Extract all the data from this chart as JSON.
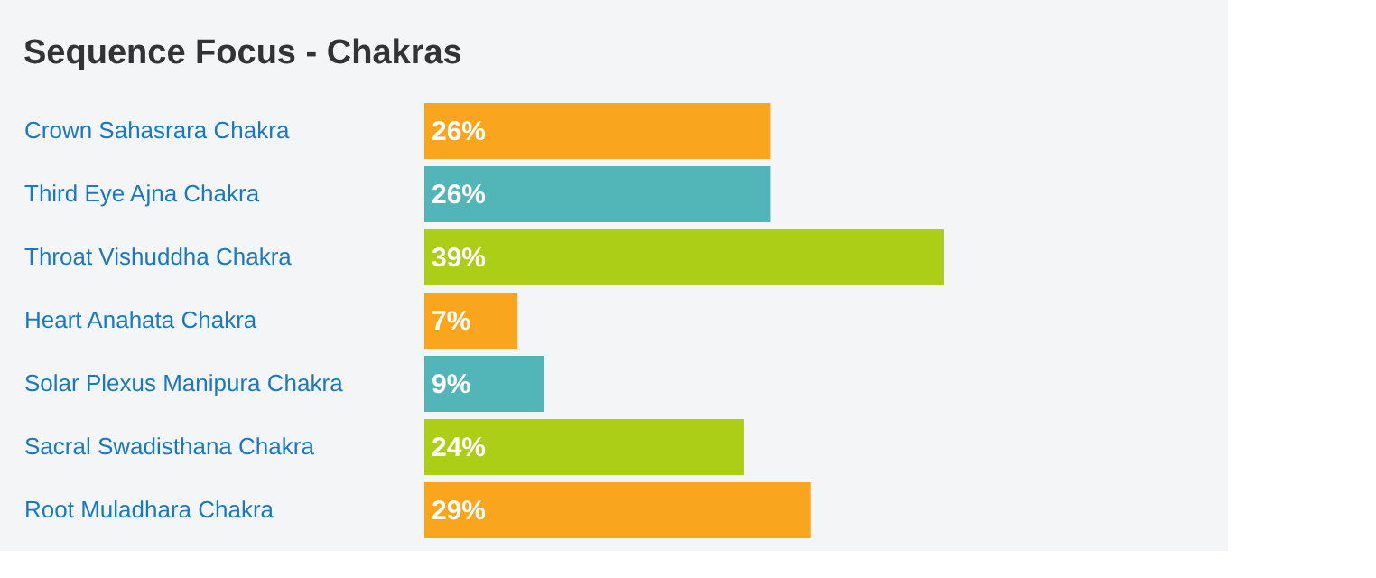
{
  "chart_data": {
    "type": "bar",
    "orientation": "horizontal",
    "title": "Sequence Focus - Chakras",
    "categories": [
      "Crown Sahasrara Chakra",
      "Third Eye Ajna Chakra",
      "Throat Vishuddha Chakra",
      "Heart Anahata Chakra",
      "Solar Plexus Manipura Chakra",
      "Sacral Swadisthana Chakra",
      "Root Muladhara Chakra"
    ],
    "values": [
      26,
      26,
      39,
      7,
      9,
      24,
      29
    ],
    "value_labels": [
      "26%",
      "26%",
      "39%",
      "7%",
      "9%",
      "24%",
      "29%"
    ],
    "colors": [
      "#f9a61e",
      "#52b5b7",
      "#acce17",
      "#f9a61e",
      "#52b5b7",
      "#acce17",
      "#f9a61e"
    ],
    "grid": false
  }
}
